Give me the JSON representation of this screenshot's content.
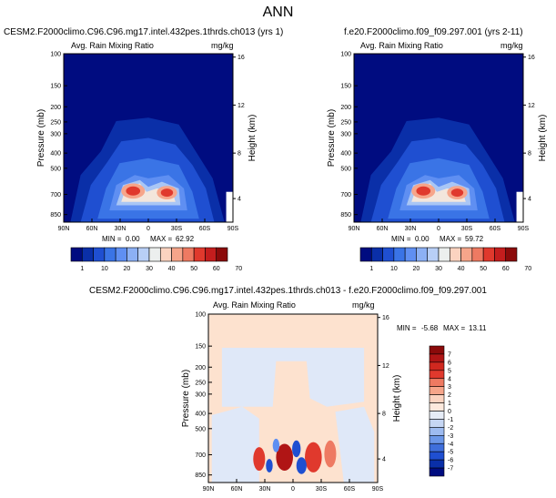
{
  "page_title": "ANN",
  "colors": {
    "blue_dark": "#000c80",
    "blue_mid": "#1f4fd1",
    "blue_light": "#5f8ff2",
    "blue_pale": "#a9c6f5",
    "red_dark": "#b01515",
    "red_mid": "#e0392d",
    "salmon": "#f6a58a",
    "diff_bg": "#fde2cf"
  },
  "chart_data": [
    {
      "type": "heatmap",
      "title": "CESM2.F2000climo.C96.C96.mg17.intel.432pes.1thrds.ch013 (yrs 1)",
      "field": "Avg. Rain Mixing Ratio",
      "units": "mg/kg",
      "ylabel": "Pressure (mb)",
      "y2label": "Height (km)",
      "x_ticks": [
        "90N",
        "60N",
        "30N",
        "0",
        "30S",
        "60S",
        "90S"
      ],
      "y_ticks": [
        "100",
        "150",
        "200",
        "250",
        "300",
        "400",
        "500",
        "700",
        "850"
      ],
      "y2_ticks": [
        "16",
        "12",
        "8",
        "4"
      ],
      "min_label": "MIN =",
      "min_value": "0.00",
      "max_label": "MAX =",
      "max_value": "62.92",
      "colorbar_labels": [
        "1",
        "10",
        "20",
        "30",
        "40",
        "50",
        "60",
        "70"
      ]
    },
    {
      "type": "heatmap",
      "title": "f.e20.F2000climo.f09_f09.297.001 (yrs 2-11)",
      "field": "Avg. Rain Mixing Ratio",
      "units": "mg/kg",
      "ylabel": "Pressure (mb)",
      "y2label": "Height (km)",
      "x_ticks": [
        "90N",
        "60N",
        "30N",
        "0",
        "30S",
        "60S",
        "90S"
      ],
      "y_ticks": [
        "100",
        "150",
        "200",
        "250",
        "300",
        "400",
        "500",
        "700",
        "850"
      ],
      "y2_ticks": [
        "16",
        "12",
        "8",
        "4"
      ],
      "min_label": "MIN =",
      "min_value": "0.00",
      "max_label": "MAX =",
      "max_value": "59.72",
      "colorbar_labels": [
        "1",
        "10",
        "20",
        "30",
        "40",
        "50",
        "60",
        "70"
      ]
    },
    {
      "type": "heatmap",
      "title": "CESM2.F2000climo.C96.C96.mg17.intel.432pes.1thrds.ch013 - f.e20.F2000climo.f09_f09.297.001",
      "field": "Avg. Rain Mixing Ratio",
      "units": "mg/kg",
      "ylabel": "Pressure (mb)",
      "y2label": "Height (km)",
      "x_ticks": [
        "90N",
        "60N",
        "30N",
        "0",
        "30S",
        "60S",
        "90S"
      ],
      "y_ticks": [
        "100",
        "150",
        "200",
        "250",
        "300",
        "400",
        "500",
        "700",
        "850"
      ],
      "y2_ticks": [
        "16",
        "12",
        "8",
        "4"
      ],
      "min_label": "MIN =",
      "min_value": "-5.68",
      "max_label": "MAX =",
      "max_value": "13.11",
      "colorbar_labels": [
        "7",
        "6",
        "5",
        "4",
        "3",
        "2",
        "1",
        "0",
        "-1",
        "-2",
        "-3",
        "-4",
        "-5",
        "-6",
        "-7"
      ]
    }
  ]
}
